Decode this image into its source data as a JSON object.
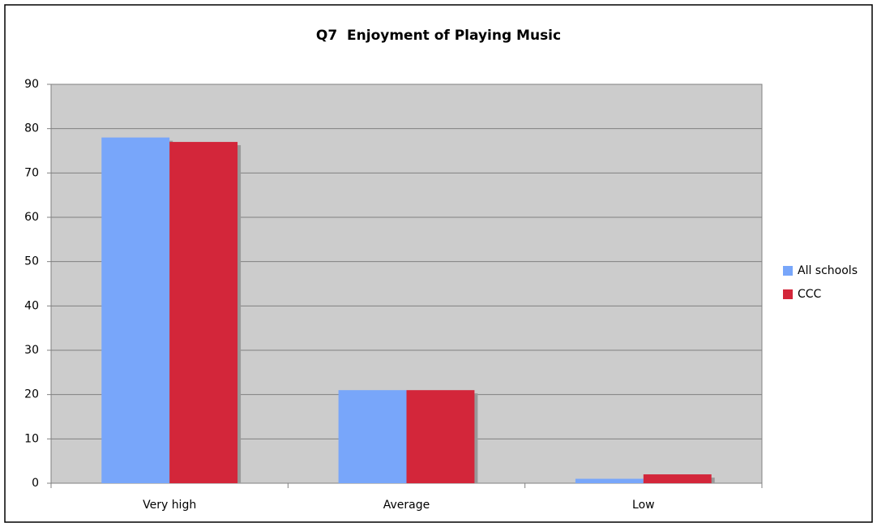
{
  "chart_data": {
    "type": "bar",
    "title": "Q7  Enjoyment of Playing Music",
    "categories": [
      "Very high",
      "Average",
      "Low"
    ],
    "series": [
      {
        "name": "All schools",
        "color": "#78a6fa",
        "values": [
          78,
          21,
          1
        ]
      },
      {
        "name": "CCC",
        "color": "#d3263a",
        "values": [
          77,
          21,
          2
        ]
      }
    ],
    "ylim": [
      0,
      90
    ],
    "yticks": [
      0,
      10,
      20,
      30,
      40,
      50,
      60,
      70,
      80,
      90
    ],
    "grid": true,
    "legend": "right"
  }
}
